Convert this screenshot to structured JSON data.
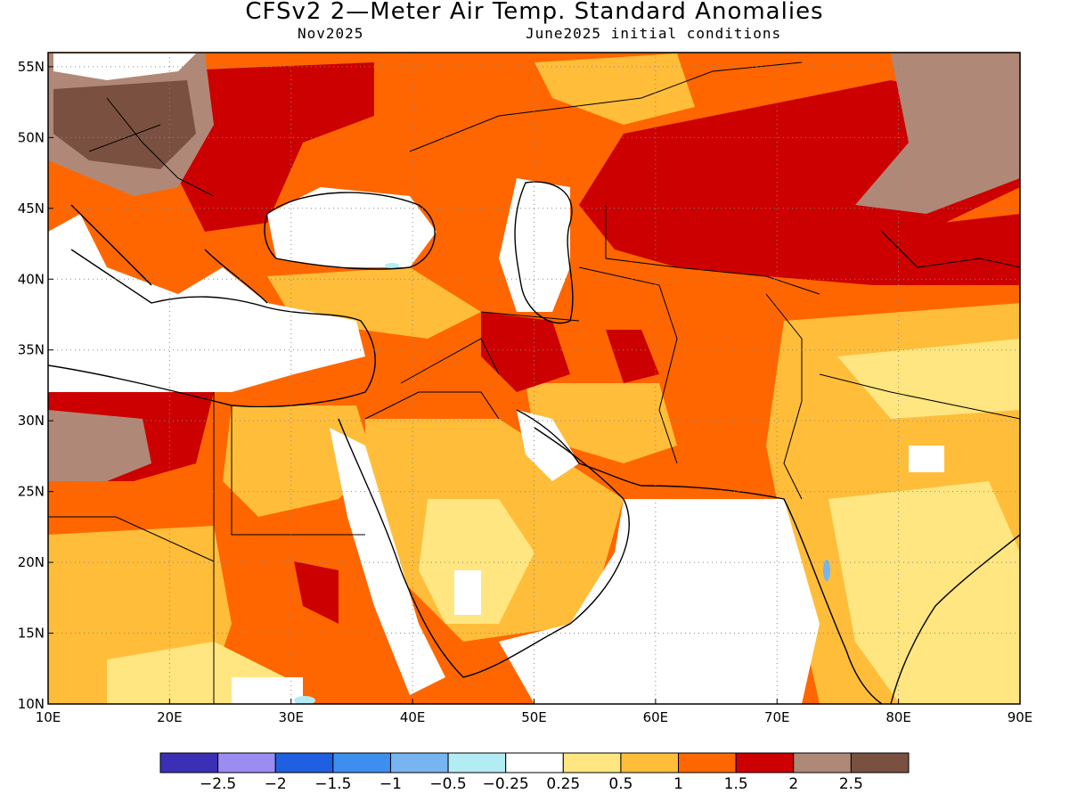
{
  "title": "CFSv2 2—Meter Air Temp. Standard Anomalies",
  "subtitle_left": "Nov2025",
  "subtitle_right": "June2025 initial conditions",
  "map": {
    "lon_range": [
      10,
      90
    ],
    "lat_range": [
      10,
      56
    ],
    "lon_ticks": [
      "10E",
      "20E",
      "30E",
      "40E",
      "50E",
      "60E",
      "70E",
      "80E",
      "90E"
    ],
    "lat_ticks": [
      "10N",
      "15N",
      "20N",
      "25N",
      "30N",
      "35N",
      "40N",
      "45N",
      "50N",
      "55N"
    ],
    "grid": "dotted"
  },
  "colorbar": {
    "colors": [
      "#3a2fb5",
      "#9a8cf0",
      "#1f5fe0",
      "#3e8ef0",
      "#78b4f0",
      "#b4ecf4",
      "#ffffff",
      "#ffe680",
      "#ffbd3a",
      "#ff6600",
      "#cc0000",
      "#b08878",
      "#7a5040"
    ],
    "labels": [
      "−2.5",
      "−2",
      "−1.5",
      "−1",
      "−0.5",
      "−0.25",
      "0.25",
      "0.5",
      "1",
      "1.5",
      "2",
      "2.5"
    ]
  }
}
